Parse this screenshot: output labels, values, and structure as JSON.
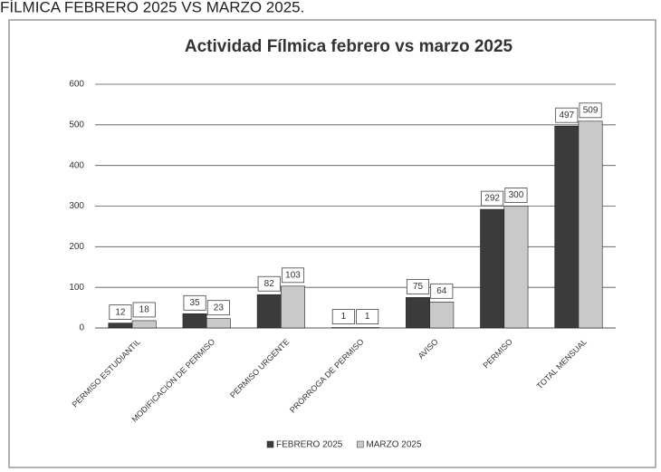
{
  "heading": "FÍLMICA FEBRERO 2025 VS MARZO 2025.",
  "chart_data": {
    "type": "bar",
    "title": "Actividad Fílmica febrero vs marzo 2025",
    "categories": [
      "PERMISO ESTUDIANTIL",
      "MODIFICACIÓN DE PERMISO",
      "PERMISO URGENTE",
      "PRÓRROGA DE PERMISO",
      "AVISO",
      "PERMISO",
      "TOTAL MENSUAL"
    ],
    "series": [
      {
        "name": "FEBRERO 2025",
        "color": "#3b3b3b",
        "values": [
          12,
          35,
          82,
          1,
          75,
          292,
          497
        ]
      },
      {
        "name": "MARZO 2025",
        "color": "#c9c9c9",
        "values": [
          18,
          23,
          103,
          1,
          64,
          300,
          509
        ]
      }
    ],
    "ylim": [
      0,
      600
    ],
    "yticks": [
      0,
      100,
      200,
      300,
      400,
      500,
      600
    ],
    "grid": true,
    "legend": "bottom"
  }
}
